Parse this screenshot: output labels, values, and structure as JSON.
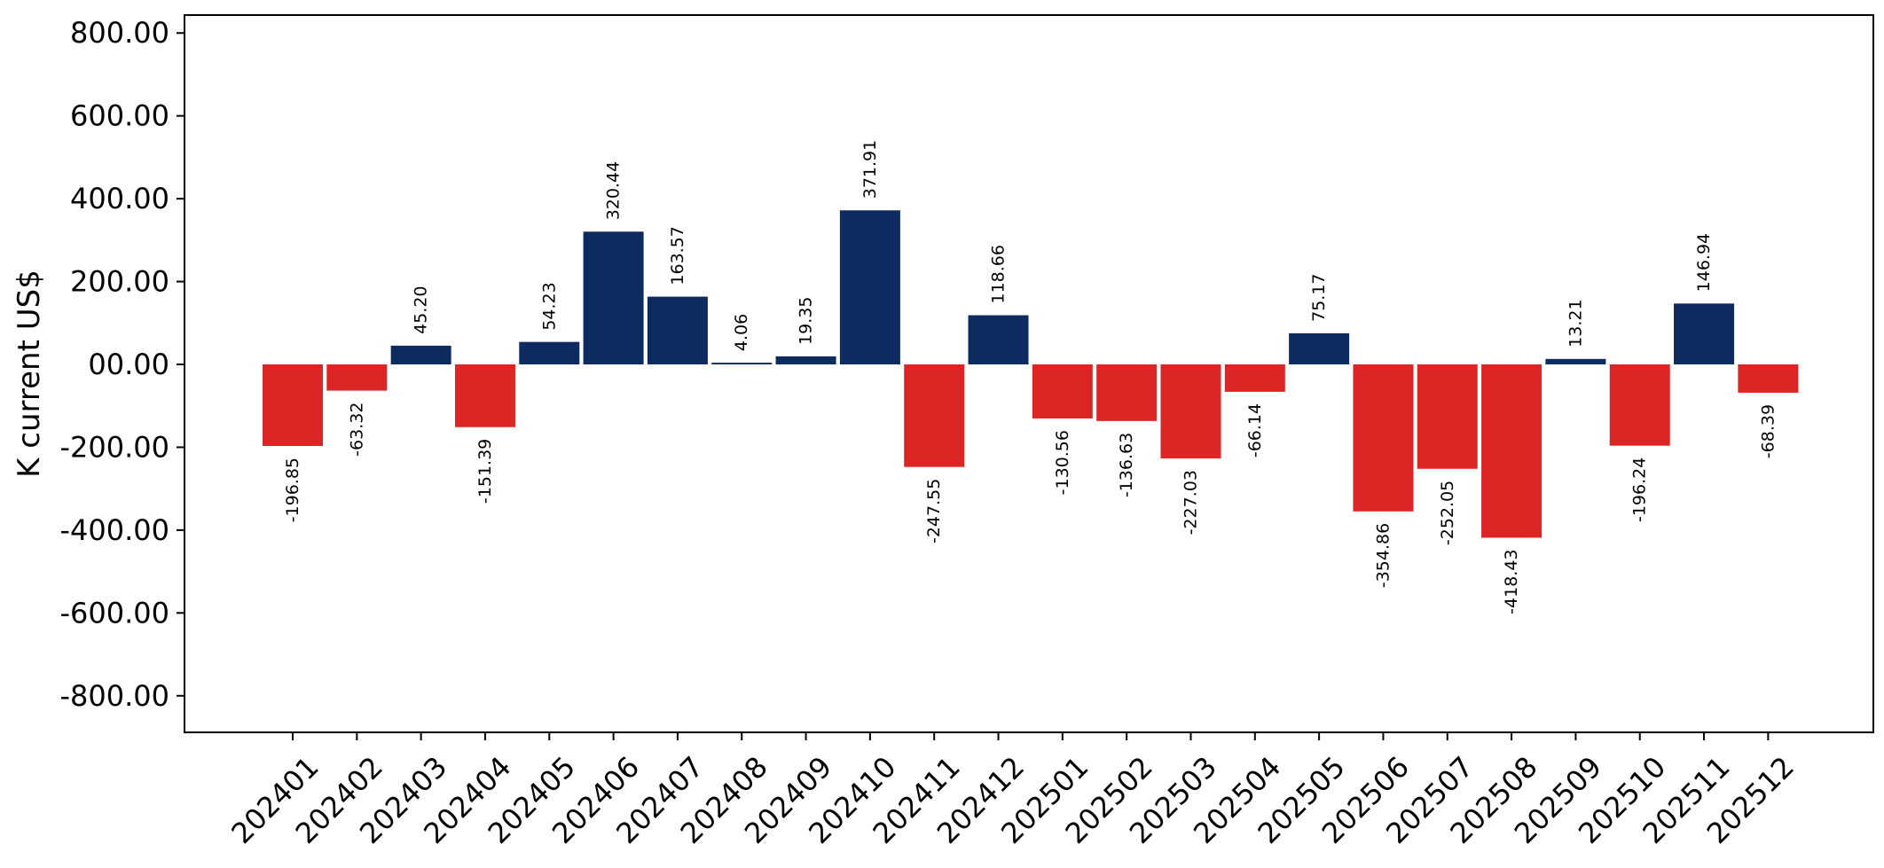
{
  "chart_data": {
    "type": "bar",
    "title": "",
    "xlabel": "",
    "ylabel": "K current US$",
    "ylim": [
      -900,
      850
    ],
    "yticks": [
      800,
      600,
      400,
      200,
      0,
      -200,
      -400,
      -600,
      -800
    ],
    "ytick_labels": [
      "800.00",
      "600.00",
      "400.00",
      "200.00",
      "00.00",
      "-200.00",
      "-400.00",
      "-600.00",
      "-800.00"
    ],
    "grid": false,
    "legend": "none",
    "colors": {
      "positive": "#0d2b5e",
      "negative": "#dc2626",
      "axis": "#000000"
    },
    "categories": [
      "202401",
      "202402",
      "202403",
      "202404",
      "202405",
      "202406",
      "202407",
      "202408",
      "202409",
      "202410",
      "202411",
      "202412",
      "202501",
      "202502",
      "202503",
      "202504",
      "202505",
      "202506",
      "202507",
      "202508",
      "202509",
      "202510",
      "202511",
      "202512"
    ],
    "values": [
      -196.85,
      -63.32,
      45.2,
      -151.39,
      54.23,
      320.44,
      163.57,
      4.06,
      19.35,
      371.91,
      -247.55,
      118.66,
      -130.56,
      -136.63,
      -227.03,
      -66.14,
      75.17,
      -354.86,
      -252.05,
      -418.43,
      13.21,
      -196.24,
      146.94,
      -68.39
    ],
    "value_labels": [
      "-196.85",
      "-63.32",
      "45.20",
      "-151.39",
      "54.23",
      "320.44",
      "163.57",
      "4.06",
      "19.35",
      "371.91",
      "-247.55",
      "118.66",
      "-130.56",
      "-136.63",
      "-227.03",
      "-66.14",
      "75.17",
      "-354.86",
      "-252.05",
      "-418.43",
      "13.21",
      "-196.24",
      "146.94",
      "-68.39"
    ]
  }
}
